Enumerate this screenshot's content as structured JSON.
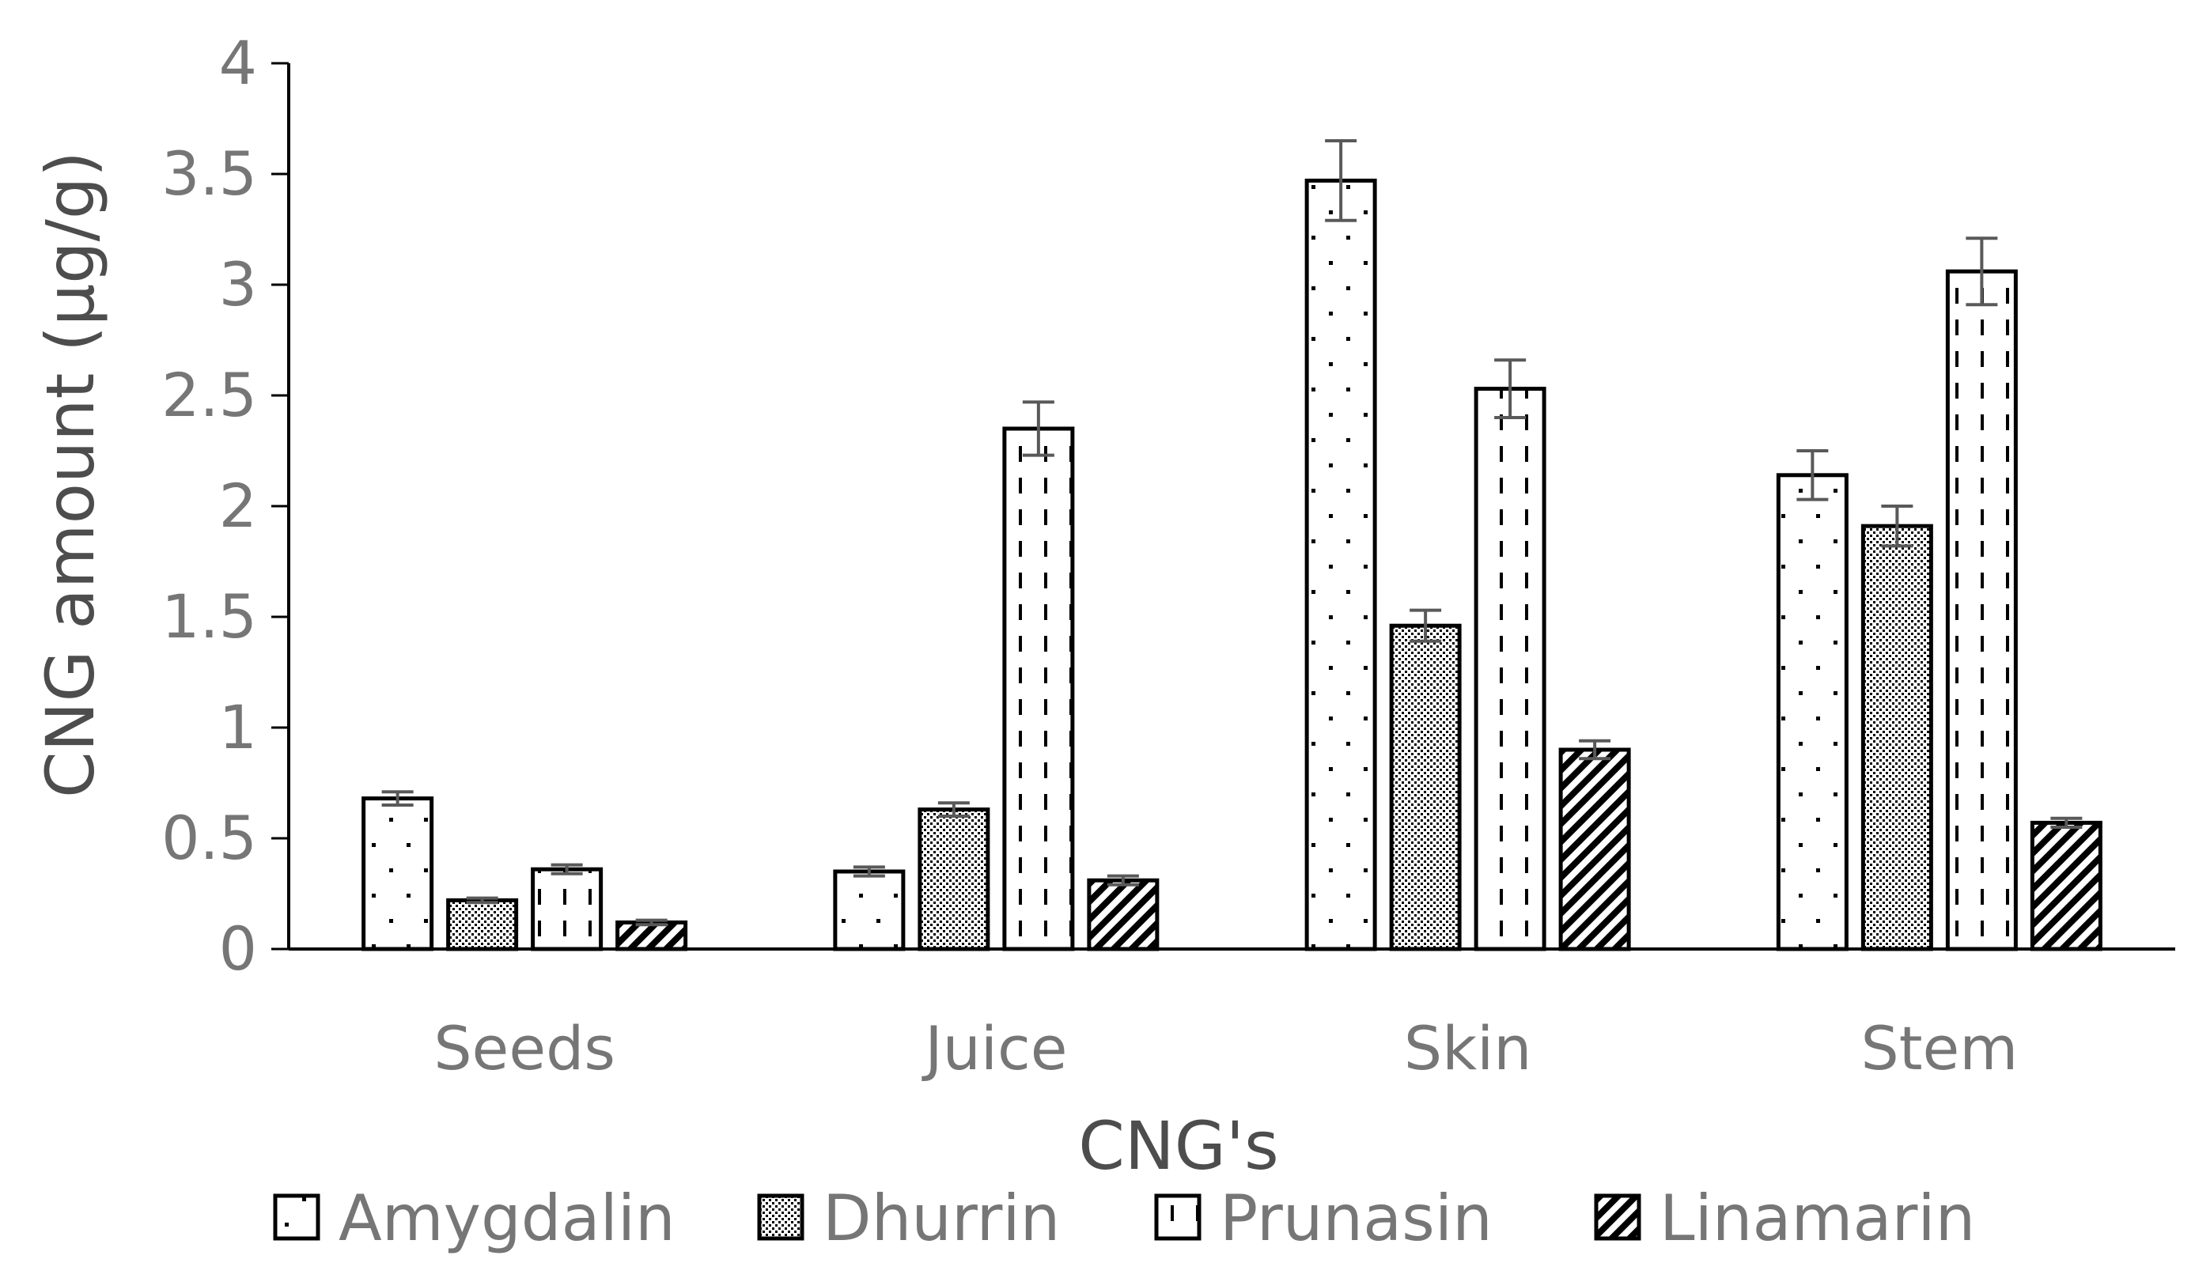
{
  "chart_data": {
    "type": "bar",
    "title": "",
    "xlabel": "CNG's",
    "ylabel": "CNG amount (µg/g)",
    "ylim": [
      0,
      4
    ],
    "yticks": [
      "0",
      "0.5",
      "1",
      "1.5",
      "2",
      "2.5",
      "3",
      "3.5",
      "4"
    ],
    "categories": [
      "Seeds",
      "Juice",
      "Skin",
      "Stem"
    ],
    "grid": false,
    "legend": "bottom",
    "series": [
      {
        "name": "Amygdalin",
        "pattern": "dots",
        "values": [
          0.68,
          0.35,
          3.47,
          2.14
        ],
        "errors": [
          0.03,
          0.02,
          0.18,
          0.11
        ]
      },
      {
        "name": "Dhurrin",
        "pattern": "stipple",
        "values": [
          0.22,
          0.63,
          1.46,
          1.91
        ],
        "errors": [
          0.01,
          0.03,
          0.07,
          0.09
        ]
      },
      {
        "name": "Prunasin",
        "pattern": "dashes",
        "values": [
          0.36,
          2.35,
          2.53,
          3.06
        ],
        "errors": [
          0.02,
          0.12,
          0.13,
          0.15
        ]
      },
      {
        "name": "Linamarin",
        "pattern": "diagonal",
        "values": [
          0.12,
          0.31,
          0.9,
          0.57
        ],
        "errors": [
          0.01,
          0.02,
          0.04,
          0.02
        ]
      }
    ]
  }
}
